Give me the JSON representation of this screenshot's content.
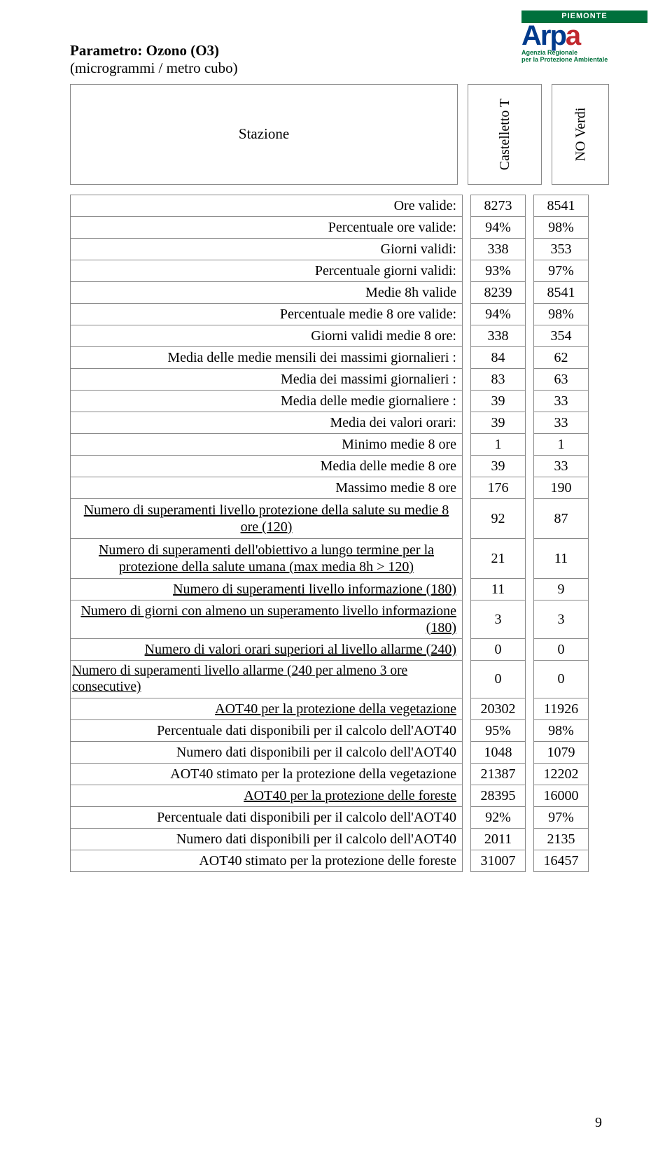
{
  "logo": {
    "region": "PIEMONTE",
    "brand_main": "Arp",
    "brand_accent": "a",
    "tagline_line1": "Agenzia Regionale",
    "tagline_line2": "per la Protezione Ambientale"
  },
  "title": "Parametro: Ozono (O3)",
  "subtitle": "(microgrammi / metro cubo)",
  "header": {
    "station_label": "Stazione",
    "col1": "Castelletto T",
    "col2": "NO Verdi"
  },
  "rows": [
    {
      "label": "Ore valide:",
      "v1": "8273",
      "v2": "8541"
    },
    {
      "label": "Percentuale ore valide:",
      "v1": "94%",
      "v2": "98%"
    },
    {
      "label": "Giorni validi:",
      "v1": "338",
      "v2": "353"
    },
    {
      "label": "Percentuale giorni validi:",
      "v1": "93%",
      "v2": "97%"
    },
    {
      "label": "Medie 8h valide",
      "v1": "8239",
      "v2": "8541"
    },
    {
      "label": "Percentuale medie 8 ore valide:",
      "v1": "94%",
      "v2": "98%"
    },
    {
      "label": "Giorni validi medie 8 ore:",
      "v1": "338",
      "v2": "354"
    },
    {
      "label": "Media delle medie mensili dei massimi giornalieri :",
      "v1": "84",
      "v2": "62"
    },
    {
      "label": "Media dei massimi giornalieri :",
      "v1": "83",
      "v2": "63"
    },
    {
      "label": "Media delle medie giornaliere :",
      "v1": "39",
      "v2": "33"
    },
    {
      "label": "Media dei valori orari:",
      "v1": "39",
      "v2": "33"
    },
    {
      "label": "Minimo medie 8 ore",
      "v1": "1",
      "v2": "1"
    },
    {
      "label": "Media delle medie 8 ore",
      "v1": "39",
      "v2": "33"
    },
    {
      "label": "Massimo medie 8 ore",
      "v1": "176",
      "v2": "190"
    },
    {
      "label": "Numero di superamenti livello protezione della salute su medie 8 ore (120)",
      "v1": "92",
      "v2": "87",
      "link": true,
      "tall": true
    },
    {
      "label": "Numero di superamenti dell'obiettivo a lungo termine per la protezione della salute umana (max media 8h > 120)",
      "v1": "21",
      "v2": "11",
      "link": true,
      "tall": true
    },
    {
      "label": "Numero di superamenti livello informazione (180)",
      "v1": "11",
      "v2": "9",
      "link": true
    },
    {
      "label": "Numero di giorni con almeno un superamento livello informazione (180)",
      "v1": "3",
      "v2": "3",
      "link": true
    },
    {
      "label": "Numero di valori orari superiori al livello allarme (240)",
      "v1": "0",
      "v2": "0",
      "link": true
    },
    {
      "label": "Numero di superamenti livello allarme (240 per almeno 3 ore consecutive)",
      "v1": "0",
      "v2": "0",
      "link": true
    },
    {
      "label": "AOT40 per la protezione della vegetazione",
      "v1": "20302",
      "v2": "11926",
      "link": true
    },
    {
      "label": "Percentuale dati disponibili per il calcolo dell'AOT40",
      "v1": "95%",
      "v2": "98%"
    },
    {
      "label": "Numero dati disponibili per il calcolo dell'AOT40",
      "v1": "1048",
      "v2": "1079"
    },
    {
      "label": "AOT40 stimato per la protezione della vegetazione",
      "v1": "21387",
      "v2": "12202"
    },
    {
      "label": "AOT40 per la protezione delle foreste",
      "v1": "28395",
      "v2": "16000",
      "link": true
    },
    {
      "label": "Percentuale dati disponibili per il calcolo dell'AOT40",
      "v1": "92%",
      "v2": "97%"
    },
    {
      "label": "Numero dati disponibili per il calcolo dell'AOT40",
      "v1": "2011",
      "v2": "2135"
    },
    {
      "label": "AOT40 stimato per la protezione delle foreste",
      "v1": "31007",
      "v2": "16457"
    }
  ],
  "page_number": "9"
}
